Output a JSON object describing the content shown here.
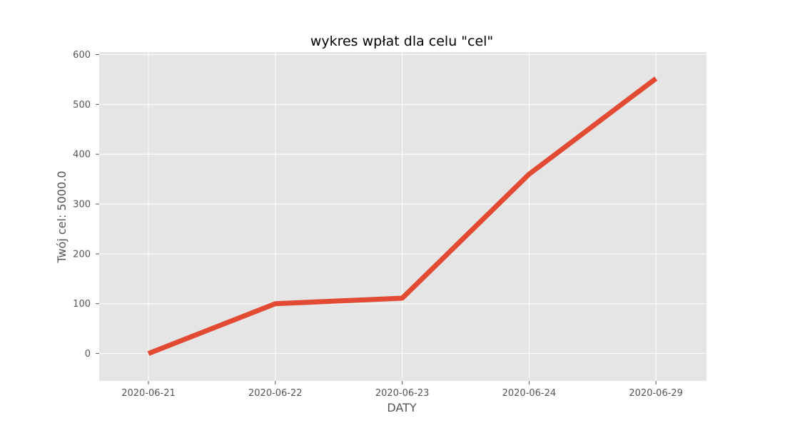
{
  "chart_data": {
    "type": "line",
    "title": "wykres wpłat dla celu \"cel\"",
    "xlabel": "DATY",
    "ylabel": "Twój cel: 5000.0",
    "categories": [
      "2020-06-21",
      "2020-06-22",
      "2020-06-23",
      "2020-06-24",
      "2020-06-29"
    ],
    "series": [
      {
        "values": [
          0,
          100,
          111,
          360,
          552
        ],
        "color": "#E24A33"
      }
    ],
    "yticks": [
      0,
      100,
      200,
      300,
      400,
      500,
      600
    ],
    "ylim": [
      -55,
      605
    ],
    "grid": true,
    "style": {
      "background": "#E5E5E5",
      "grid_color": "#FFFFFF",
      "tick_color": "#555555"
    }
  }
}
